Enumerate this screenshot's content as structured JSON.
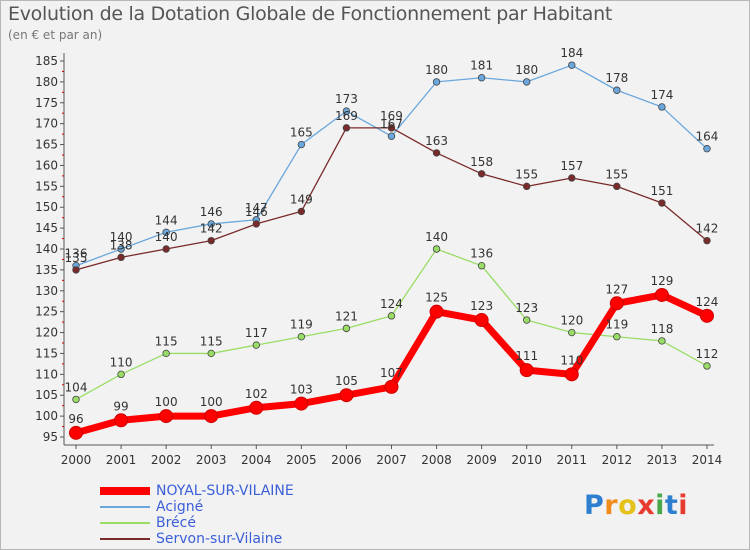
{
  "chart_data": {
    "type": "line",
    "title": "Evolution de la Dotation Globale de Fonctionnement par Habitant",
    "subtitle": "(en € et par an)",
    "xlabel": "",
    "ylabel": "",
    "ylim": [
      95,
      185
    ],
    "ytick_step": 5,
    "grid": false,
    "legend_position": "bottom-left",
    "categories": [
      "2000",
      "2001",
      "2002",
      "2003",
      "2004",
      "2005",
      "2006",
      "2007",
      "2008",
      "2009",
      "2010",
      "2011",
      "2012",
      "2013",
      "2014"
    ],
    "series": [
      {
        "name": "NOYAL-SUR-VILAINE",
        "color": "#ff0000",
        "emphasis": true,
        "values": [
          96,
          99,
          100,
          100,
          102,
          103,
          105,
          107,
          125,
          123,
          111,
          110,
          127,
          129,
          124
        ]
      },
      {
        "name": "Acigné",
        "color": "#6aa7dd",
        "emphasis": false,
        "values": [
          136,
          140,
          144,
          146,
          147,
          165,
          173,
          167,
          180,
          181,
          180,
          184,
          178,
          174,
          164
        ]
      },
      {
        "name": "Brécé",
        "color": "#99dd66",
        "emphasis": false,
        "values": [
          104,
          110,
          115,
          115,
          117,
          119,
          121,
          124,
          140,
          136,
          123,
          120,
          119,
          118,
          112
        ]
      },
      {
        "name": "Servon-sur-Vilaine",
        "color": "#7a2a2a",
        "emphasis": false,
        "values": [
          135,
          138,
          140,
          142,
          146,
          149,
          169,
          169,
          163,
          158,
          155,
          157,
          155,
          151,
          142
        ]
      }
    ]
  },
  "legend_text_color": "#3b5fd9",
  "logo": {
    "text": "Proxiti",
    "letters": [
      {
        "ch": "P",
        "color": "#2f7fd0"
      },
      {
        "ch": "r",
        "color": "#f08c1a"
      },
      {
        "ch": "o",
        "color": "#e4c21c"
      },
      {
        "ch": "x",
        "color": "#e63b2e"
      },
      {
        "ch": "i",
        "color": "#4aa84a"
      },
      {
        "ch": "t",
        "color": "#2f7fd0"
      },
      {
        "ch": "i",
        "color": "#e63b2e"
      }
    ]
  }
}
